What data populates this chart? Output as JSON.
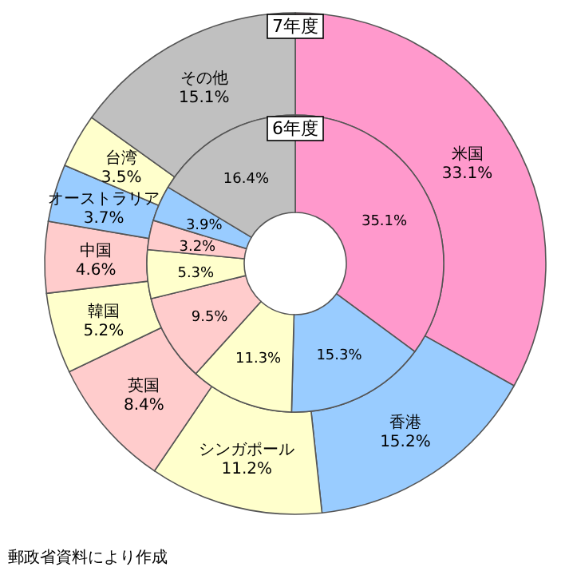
{
  "chart_data": {
    "type": "donut",
    "categories": [
      "米国",
      "香港",
      "シンガポール",
      "英国",
      "韓国",
      "中国",
      "オーストラリア",
      "台湾",
      "その他"
    ],
    "colors": [
      "#ff99cc",
      "#99ccff",
      "#ffffcc",
      "#ffcccc",
      "#ffffcc",
      "#ffcccc",
      "#99ccff",
      "#ffffcc",
      "#c0c0c0"
    ],
    "series": [
      {
        "name": "7年度",
        "values": [
          33.1,
          15.2,
          11.2,
          8.4,
          5.2,
          4.6,
          3.7,
          3.5,
          15.1
        ],
        "value_labels": [
          "33.1%",
          "15.2%",
          "11.2%",
          "8.4%",
          "5.2%",
          "4.6%",
          "3.7%",
          "3.5%",
          "15.1%"
        ]
      },
      {
        "name": "6年度",
        "values": [
          35.1,
          15.3,
          11.3,
          9.5,
          5.3,
          3.2,
          3.9,
          null,
          16.4
        ],
        "value_labels": [
          "35.1%",
          "15.3%",
          "11.3%",
          "9.5%",
          "5.3%",
          "3.2%",
          "3.9%",
          null,
          "16.4%"
        ]
      }
    ],
    "annotations": [
      "郵政省資料により作成"
    ]
  }
}
